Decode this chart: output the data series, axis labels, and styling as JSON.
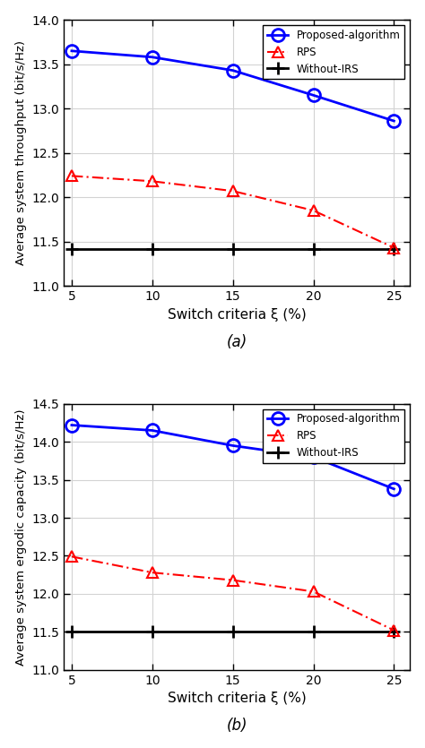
{
  "x": [
    5,
    10,
    15,
    20,
    25
  ],
  "subplot_a": {
    "proposed": [
      13.65,
      13.58,
      13.43,
      13.15,
      12.86
    ],
    "rps": [
      12.24,
      12.18,
      12.07,
      11.85,
      11.43
    ],
    "without_irs": 11.42,
    "ylabel": "Average system throughput (bit/s/Hz)",
    "ylim": [
      11.0,
      14.0
    ],
    "yticks": [
      11.0,
      11.5,
      12.0,
      12.5,
      13.0,
      13.5,
      14.0
    ],
    "label": "(a)"
  },
  "subplot_b": {
    "proposed": [
      14.22,
      14.15,
      13.95,
      13.8,
      13.38
    ],
    "rps": [
      12.49,
      12.28,
      12.18,
      12.03,
      11.52
    ],
    "without_irs": 11.5,
    "ylabel": "Average system ergodic capacity (bit/s/Hz)",
    "ylim": [
      11.0,
      14.5
    ],
    "yticks": [
      11.0,
      11.5,
      12.0,
      12.5,
      13.0,
      13.5,
      14.0,
      14.5
    ],
    "label": "(b)"
  },
  "xlabel": "Switch criteria ξ (%)",
  "legend_labels": [
    "Proposed-algorithm",
    "RPS",
    "Without-IRS"
  ],
  "color_proposed": "#0000ff",
  "color_rps": "#ff0000",
  "color_irs": "#000000",
  "xticks": [
    5,
    10,
    15,
    20,
    25
  ],
  "grid_color": "#d3d3d3",
  "bg_color": "#ffffff"
}
